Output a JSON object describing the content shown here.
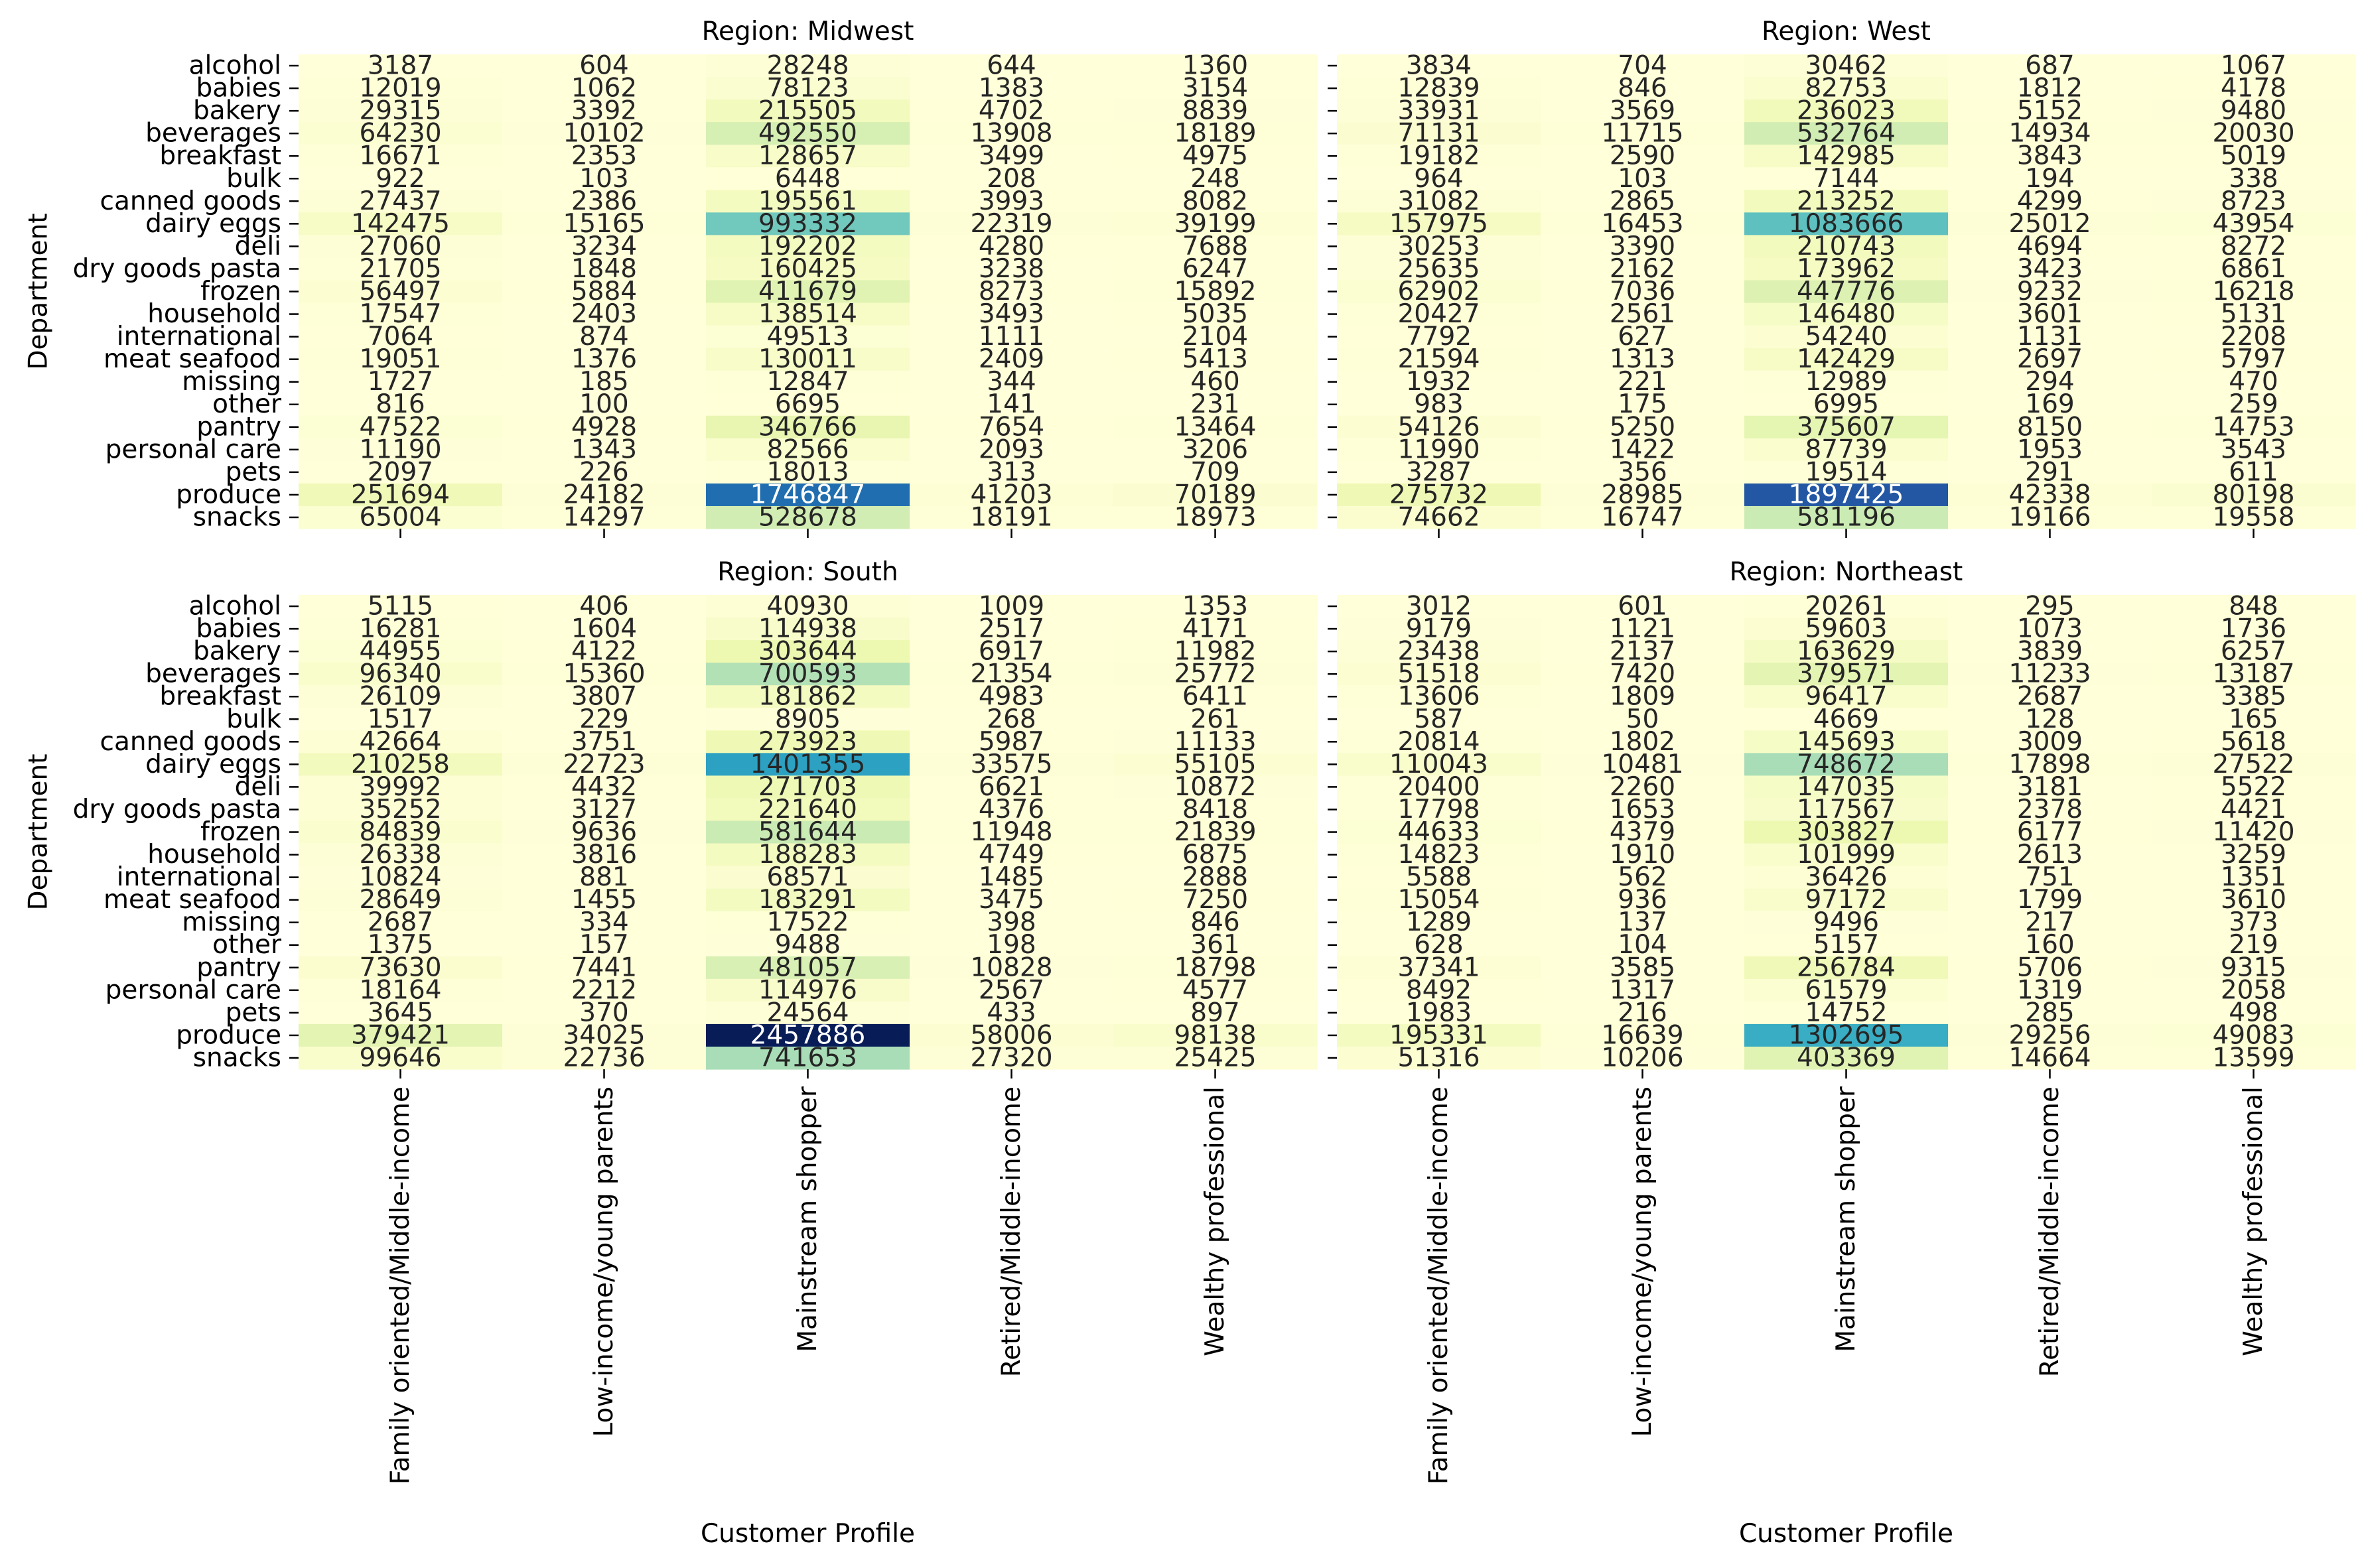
{
  "chart_data": {
    "type": "heatmap",
    "colormap": "YlGnBu",
    "colormap_stops": [
      "#ffffd9",
      "#edf8b1",
      "#c7e9b4",
      "#7fcdbb",
      "#41b6c4",
      "#1d91c0",
      "#225ea8",
      "#253494",
      "#081d58"
    ],
    "color_range": [
      0,
      2457886
    ],
    "departments": [
      "alcohol",
      "babies",
      "bakery",
      "beverages",
      "breakfast",
      "bulk",
      "canned goods",
      "dairy eggs",
      "deli",
      "dry goods pasta",
      "frozen",
      "household",
      "international",
      "meat seafood",
      "missing",
      "other",
      "pantry",
      "personal care",
      "pets",
      "produce",
      "snacks"
    ],
    "profiles": [
      "Family oriented/Middle-income",
      "Low-income/young parents",
      "Mainstream shopper",
      "Retired/Middle-income",
      "Wealthy professional"
    ],
    "xlabel": "Customer Profile",
    "ylabel": "Department",
    "panels": [
      {
        "title": "Region: Midwest",
        "values": [
          [
            3187,
            604,
            28248,
            644,
            1360
          ],
          [
            12019,
            1062,
            78123,
            1383,
            3154
          ],
          [
            29315,
            3392,
            215505,
            4702,
            8839
          ],
          [
            64230,
            10102,
            492550,
            13908,
            18189
          ],
          [
            16671,
            2353,
            128657,
            3499,
            4975
          ],
          [
            922,
            103,
            6448,
            208,
            248
          ],
          [
            27437,
            2386,
            195561,
            3993,
            8082
          ],
          [
            142475,
            15165,
            993332,
            22319,
            39199
          ],
          [
            27060,
            3234,
            192202,
            4280,
            7688
          ],
          [
            21705,
            1848,
            160425,
            3238,
            6247
          ],
          [
            56497,
            5884,
            411679,
            8273,
            15892
          ],
          [
            17547,
            2403,
            138514,
            3493,
            5035
          ],
          [
            7064,
            874,
            49513,
            1111,
            2104
          ],
          [
            19051,
            1376,
            130011,
            2409,
            5413
          ],
          [
            1727,
            185,
            12847,
            344,
            460
          ],
          [
            816,
            100,
            6695,
            141,
            231
          ],
          [
            47522,
            4928,
            346766,
            7654,
            13464
          ],
          [
            11190,
            1343,
            82566,
            2093,
            3206
          ],
          [
            2097,
            226,
            18013,
            313,
            709
          ],
          [
            251694,
            24182,
            1746847,
            41203,
            70189
          ],
          [
            65004,
            14297,
            528678,
            18191,
            18973
          ]
        ]
      },
      {
        "title": "Region: West",
        "values": [
          [
            3834,
            704,
            30462,
            687,
            1067
          ],
          [
            12839,
            846,
            82753,
            1812,
            4178
          ],
          [
            33931,
            3569,
            236023,
            5152,
            9480
          ],
          [
            71131,
            11715,
            532764,
            14934,
            20030
          ],
          [
            19182,
            2590,
            142985,
            3843,
            5019
          ],
          [
            964,
            103,
            7144,
            194,
            338
          ],
          [
            31082,
            2865,
            213252,
            4299,
            8723
          ],
          [
            157975,
            16453,
            1083666,
            25012,
            43954
          ],
          [
            30253,
            3390,
            210743,
            4694,
            8272
          ],
          [
            25635,
            2162,
            173962,
            3423,
            6861
          ],
          [
            62902,
            7036,
            447776,
            9232,
            16218
          ],
          [
            20427,
            2561,
            146480,
            3601,
            5131
          ],
          [
            7792,
            627,
            54240,
            1131,
            2208
          ],
          [
            21594,
            1313,
            142429,
            2697,
            5797
          ],
          [
            1932,
            221,
            12989,
            294,
            470
          ],
          [
            983,
            175,
            6995,
            169,
            259
          ],
          [
            54126,
            5250,
            375607,
            8150,
            14753
          ],
          [
            11990,
            1422,
            87739,
            1953,
            3543
          ],
          [
            3287,
            356,
            19514,
            291,
            611
          ],
          [
            275732,
            28985,
            1897425,
            42338,
            80198
          ],
          [
            74662,
            16747,
            581196,
            19166,
            19558
          ]
        ]
      },
      {
        "title": "Region: South",
        "values": [
          [
            5115,
            406,
            40930,
            1009,
            1353
          ],
          [
            16281,
            1604,
            114938,
            2517,
            4171
          ],
          [
            44955,
            4122,
            303644,
            6917,
            11982
          ],
          [
            96340,
            15360,
            700593,
            21354,
            25772
          ],
          [
            26109,
            3807,
            181862,
            4983,
            6411
          ],
          [
            1517,
            229,
            8905,
            268,
            261
          ],
          [
            42664,
            3751,
            273923,
            5987,
            11133
          ],
          [
            210258,
            22723,
            1401355,
            33575,
            55105
          ],
          [
            39992,
            4432,
            271703,
            6621,
            10872
          ],
          [
            35252,
            3127,
            221640,
            4376,
            8418
          ],
          [
            84839,
            9636,
            581644,
            11948,
            21839
          ],
          [
            26338,
            3816,
            188283,
            4749,
            6875
          ],
          [
            10824,
            881,
            68571,
            1485,
            2888
          ],
          [
            28649,
            1455,
            183291,
            3475,
            7250
          ],
          [
            2687,
            334,
            17522,
            398,
            846
          ],
          [
            1375,
            157,
            9488,
            198,
            361
          ],
          [
            73630,
            7441,
            481057,
            10828,
            18798
          ],
          [
            18164,
            2212,
            114976,
            2567,
            4577
          ],
          [
            3645,
            370,
            24564,
            433,
            897
          ],
          [
            379421,
            34025,
            2457886,
            58006,
            98138
          ],
          [
            99646,
            22736,
            741653,
            27320,
            25425
          ]
        ]
      },
      {
        "title": "Region: Northeast",
        "values": [
          [
            3012,
            601,
            20261,
            295,
            848
          ],
          [
            9179,
            1121,
            59603,
            1073,
            1736
          ],
          [
            23438,
            2137,
            163629,
            3839,
            6257
          ],
          [
            51518,
            7420,
            379571,
            11233,
            13187
          ],
          [
            13606,
            1809,
            96417,
            2687,
            3385
          ],
          [
            587,
            50,
            4669,
            128,
            165
          ],
          [
            20814,
            1802,
            145693,
            3009,
            5618
          ],
          [
            110043,
            10481,
            748672,
            17898,
            27522
          ],
          [
            20400,
            2260,
            147035,
            3181,
            5522
          ],
          [
            17798,
            1653,
            117567,
            2378,
            4421
          ],
          [
            44633,
            4379,
            303827,
            6177,
            11420
          ],
          [
            14823,
            1910,
            101999,
            2613,
            3259
          ],
          [
            5588,
            562,
            36426,
            751,
            1351
          ],
          [
            15054,
            936,
            97172,
            1799,
            3610
          ],
          [
            1289,
            137,
            9496,
            217,
            373
          ],
          [
            628,
            104,
            5157,
            160,
            219
          ],
          [
            37341,
            3585,
            256784,
            5706,
            9315
          ],
          [
            8492,
            1317,
            61579,
            1319,
            2058
          ],
          [
            1983,
            216,
            14752,
            285,
            498
          ],
          [
            195331,
            16639,
            1302695,
            29256,
            49083
          ],
          [
            51316,
            10206,
            403369,
            14664,
            13599
          ]
        ]
      }
    ]
  }
}
